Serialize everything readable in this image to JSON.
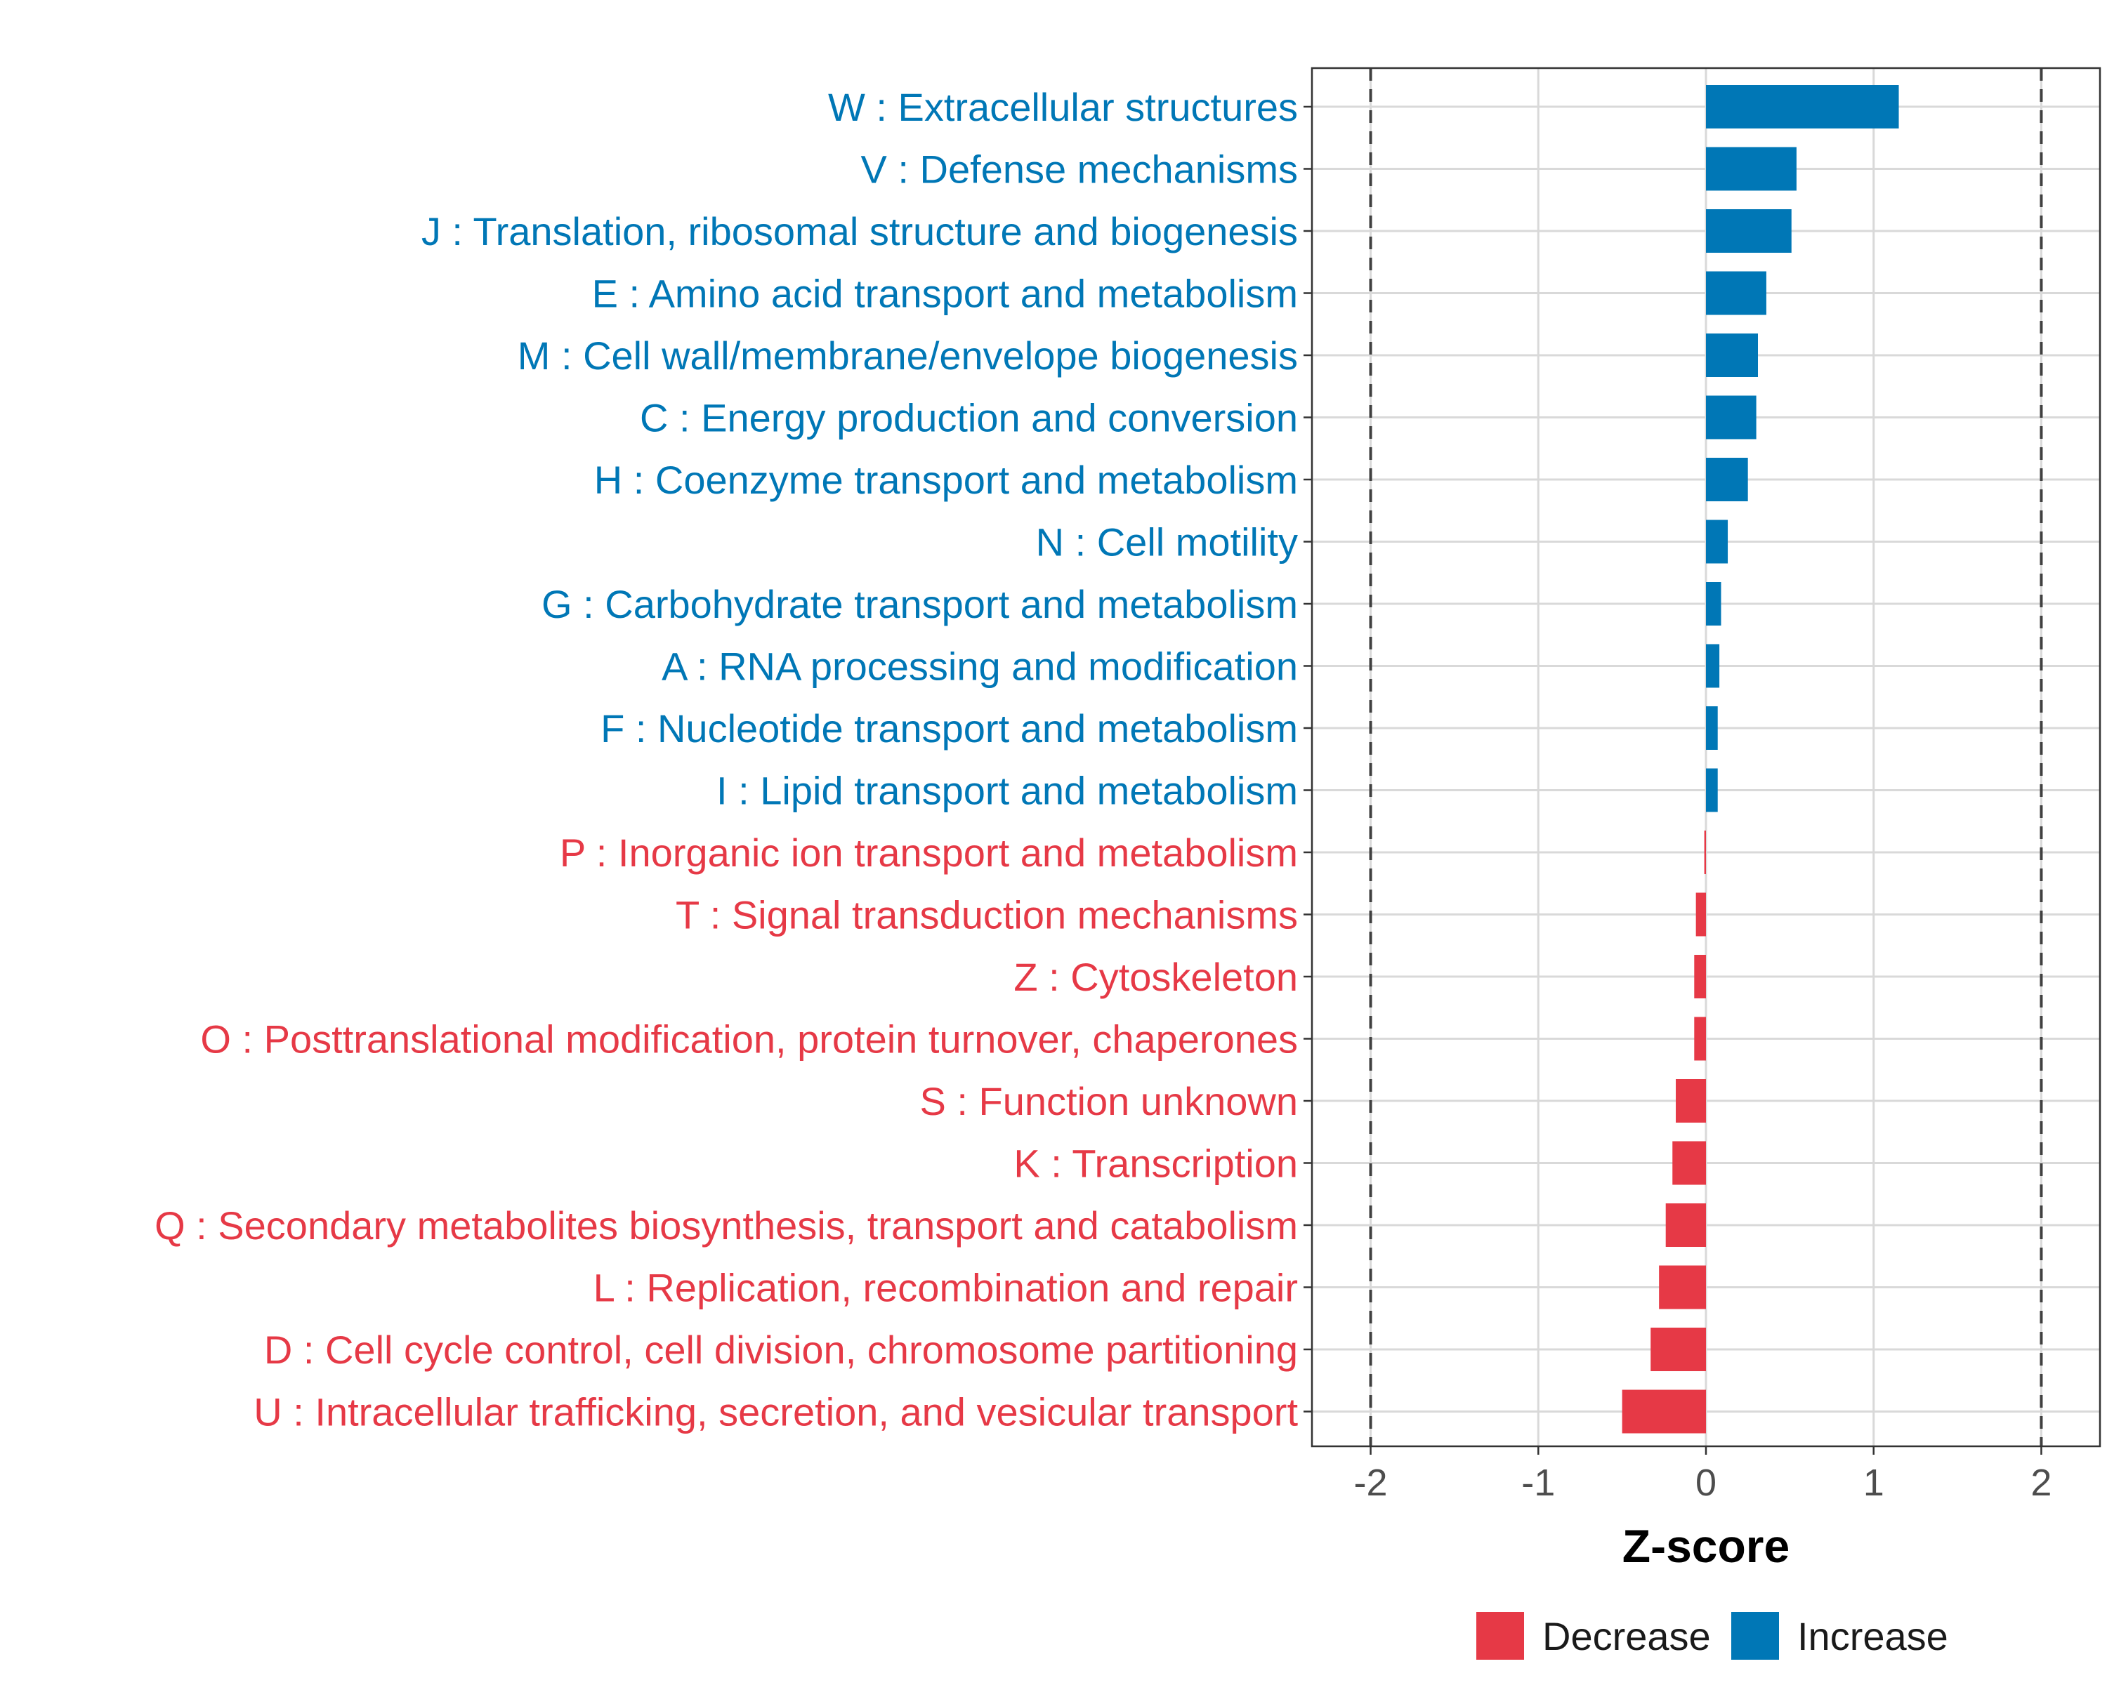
{
  "chart_data": {
    "type": "bar",
    "orientation": "horizontal",
    "title": "",
    "xlabel": "Z-score",
    "ylabel": "",
    "xlim": [
      -2.35,
      2.35
    ],
    "xticks": [
      -2,
      -1,
      0,
      1,
      2
    ],
    "xtick_labels": [
      "-2",
      "-1",
      "0",
      "1",
      "2"
    ],
    "reference_lines": [
      -2,
      2
    ],
    "grid": true,
    "categories": [
      "W : Extracellular structures",
      "V : Defense mechanisms",
      "J : Translation, ribosomal structure and biogenesis",
      "E : Amino acid transport and metabolism",
      "M : Cell wall/membrane/envelope biogenesis",
      "C : Energy production and conversion",
      "H : Coenzyme transport and metabolism",
      "N : Cell motility",
      "G : Carbohydrate transport and metabolism",
      "A : RNA processing and modification",
      "F : Nucleotide transport and metabolism",
      "I : Lipid transport and metabolism",
      "P : Inorganic ion transport and metabolism",
      "T : Signal transduction mechanisms",
      "Z : Cytoskeleton",
      "O : Posttranslational modification, protein turnover, chaperones",
      "S : Function unknown",
      "K : Transcription",
      "Q : Secondary metabolites biosynthesis, transport and catabolism",
      "L : Replication, recombination and repair",
      "D : Cell cycle control, cell division, chromosome partitioning",
      "U : Intracellular trafficking, secretion, and vesicular transport"
    ],
    "values": [
      1.15,
      0.54,
      0.51,
      0.36,
      0.31,
      0.3,
      0.25,
      0.13,
      0.09,
      0.08,
      0.07,
      0.07,
      -0.01,
      -0.06,
      -0.07,
      -0.07,
      -0.18,
      -0.2,
      -0.24,
      -0.28,
      -0.33,
      -0.5
    ],
    "groups": [
      "Increase",
      "Increase",
      "Increase",
      "Increase",
      "Increase",
      "Increase",
      "Increase",
      "Increase",
      "Increase",
      "Increase",
      "Increase",
      "Increase",
      "Decrease",
      "Decrease",
      "Decrease",
      "Decrease",
      "Decrease",
      "Decrease",
      "Decrease",
      "Decrease",
      "Decrease",
      "Decrease"
    ],
    "legend": {
      "position": "bottom",
      "entries": [
        {
          "label": "Decrease",
          "color": "#E63946"
        },
        {
          "label": "Increase",
          "color": "#0077B6"
        }
      ]
    },
    "colors": {
      "Decrease": "#E63946",
      "Increase": "#0077B6"
    }
  }
}
